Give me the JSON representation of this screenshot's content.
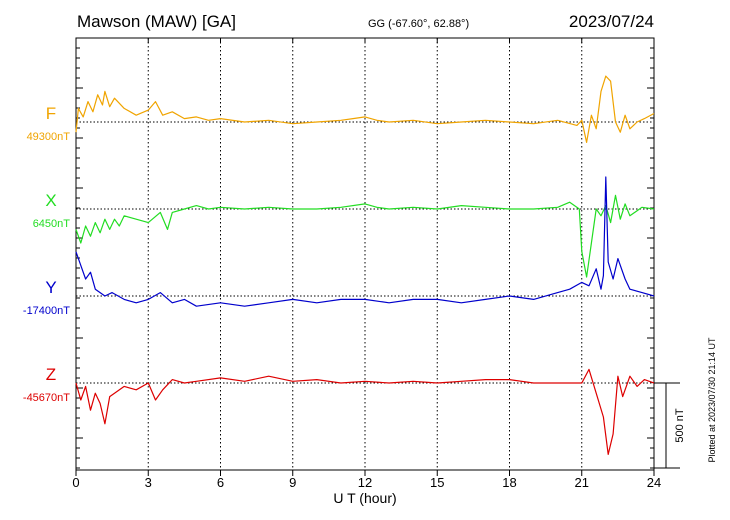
{
  "header": {
    "station": "Mawson (MAW)  [GA]",
    "coords": "GG (-67.60°,  62.88°)",
    "date": "2023/07/24"
  },
  "footer": {
    "plotted": "Plotted at 2023/07/30 21:14 UT"
  },
  "chart_data": {
    "type": "line",
    "xlabel": "U T (hour)",
    "xlim": [
      0,
      24
    ],
    "x_ticks": [
      0,
      3,
      6,
      9,
      12,
      15,
      18,
      21,
      24
    ],
    "x_tick_labels": [
      "0",
      "3",
      "6",
      "9",
      "12",
      "15",
      "18",
      "21",
      "24"
    ],
    "grid": true,
    "scale_bar_label": "500 nT",
    "scale_bar_nT": 500,
    "series": [
      {
        "name": "F",
        "baseline_label": "49300nT",
        "color": "#f0a400",
        "x": [
          0,
          0.1,
          0.3,
          0.5,
          0.7,
          0.9,
          1.1,
          1.2,
          1.4,
          1.6,
          2.0,
          2.5,
          3.0,
          3.3,
          3.6,
          4.0,
          4.5,
          5.0,
          5.5,
          6.0,
          7.0,
          8.0,
          9.0,
          10.0,
          11.0,
          11.5,
          12.0,
          12.5,
          13.0,
          14.0,
          15.0,
          16.0,
          17.0,
          18.0,
          19.0,
          20.0,
          20.8,
          21.0,
          21.2,
          21.4,
          21.6,
          21.8,
          22.0,
          22.2,
          22.4,
          22.6,
          22.8,
          23.0,
          23.3,
          23.6,
          24.0
        ],
        "values": [
          -60,
          80,
          30,
          120,
          60,
          160,
          100,
          180,
          90,
          140,
          80,
          40,
          70,
          120,
          40,
          60,
          20,
          30,
          10,
          20,
          0,
          10,
          -10,
          0,
          10,
          20,
          30,
          10,
          0,
          10,
          -10,
          0,
          10,
          0,
          -10,
          10,
          -20,
          10,
          -120,
          40,
          -40,
          180,
          270,
          240,
          0,
          -60,
          40,
          -40,
          0,
          20,
          50
        ]
      },
      {
        "name": "X",
        "baseline_label": "6450nT",
        "color": "#22dd22",
        "x": [
          0,
          0.2,
          0.4,
          0.6,
          0.8,
          1.0,
          1.2,
          1.4,
          1.6,
          1.8,
          2.0,
          2.5,
          3.0,
          3.5,
          3.8,
          4.0,
          4.5,
          5.0,
          5.5,
          6.0,
          7.0,
          8.0,
          9.0,
          10.0,
          11.0,
          12.0,
          12.5,
          13.0,
          14.0,
          15.0,
          16.0,
          17.0,
          18.0,
          19.0,
          20.0,
          20.5,
          20.9,
          21.0,
          21.2,
          21.4,
          21.6,
          21.8,
          22.0,
          22.2,
          22.4,
          22.6,
          22.8,
          23.0,
          23.5,
          24.0
        ],
        "values": [
          -120,
          -200,
          -100,
          -160,
          -80,
          -140,
          -60,
          -120,
          -60,
          -100,
          -40,
          -60,
          -80,
          -20,
          -120,
          -20,
          0,
          20,
          0,
          10,
          0,
          10,
          0,
          0,
          10,
          30,
          10,
          0,
          10,
          0,
          20,
          10,
          0,
          0,
          10,
          40,
          0,
          -250,
          -400,
          -200,
          0,
          -40,
          20,
          -80,
          80,
          -60,
          30,
          -40,
          10,
          0
        ]
      },
      {
        "name": "Y",
        "baseline_label": "-17400nT",
        "color": "#0000cc",
        "x": [
          0,
          0.2,
          0.4,
          0.6,
          0.8,
          1.0,
          1.2,
          1.5,
          2.0,
          2.5,
          3.0,
          3.5,
          4.0,
          4.5,
          5.0,
          6.0,
          7.0,
          8.0,
          9.0,
          10.0,
          11.0,
          12.0,
          13.0,
          14.0,
          15.0,
          16.0,
          17.0,
          18.0,
          19.0,
          20.0,
          20.5,
          21.0,
          21.3,
          21.6,
          21.8,
          21.9,
          22.0,
          22.1,
          22.3,
          22.5,
          22.8,
          23.0,
          23.5,
          24.0
        ],
        "values": [
          260,
          180,
          100,
          140,
          40,
          20,
          0,
          20,
          -20,
          -40,
          -20,
          20,
          -40,
          -20,
          -60,
          -40,
          -60,
          -40,
          -20,
          -40,
          -20,
          -20,
          -40,
          -20,
          -20,
          -40,
          -20,
          0,
          -20,
          20,
          40,
          80,
          60,
          160,
          40,
          120,
          700,
          200,
          100,
          220,
          100,
          40,
          20,
          0
        ]
      },
      {
        "name": "Z",
        "baseline_label": "-45670nT",
        "color": "#dd0000",
        "x": [
          0,
          0.2,
          0.4,
          0.6,
          0.8,
          1.0,
          1.2,
          1.4,
          1.6,
          2.0,
          2.5,
          3.0,
          3.3,
          3.6,
          4.0,
          4.5,
          5.0,
          6.0,
          7.0,
          8.0,
          9.0,
          10.0,
          11.0,
          12.0,
          13.0,
          14.0,
          15.0,
          16.0,
          17.0,
          18.0,
          19.0,
          20.0,
          21.0,
          21.3,
          21.6,
          21.9,
          22.1,
          22.3,
          22.5,
          22.7,
          23.0,
          23.3,
          23.6,
          24.0
        ],
        "values": [
          0,
          -100,
          -20,
          -160,
          -60,
          -120,
          -240,
          -80,
          -60,
          -20,
          -40,
          0,
          -100,
          -40,
          20,
          0,
          10,
          30,
          10,
          40,
          10,
          20,
          0,
          10,
          0,
          10,
          0,
          10,
          20,
          20,
          0,
          0,
          0,
          80,
          -60,
          -200,
          -420,
          -300,
          40,
          -80,
          40,
          -20,
          20,
          0
        ]
      }
    ]
  }
}
